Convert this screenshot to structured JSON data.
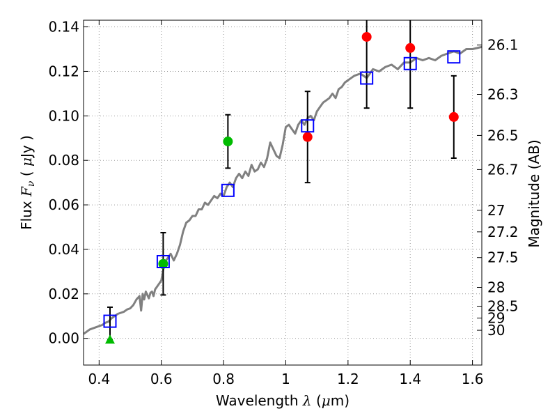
{
  "chart_data": {
    "type": "scatter",
    "title": "",
    "xlabel": {
      "prefix": "Wavelength  ",
      "symbol": "λ",
      "suffix": " (",
      "unit_symbol": "μ",
      "unit": "m)"
    },
    "ylabel": {
      "prefix": "Flux  ",
      "symbol": "F",
      "subscript": "ν",
      "suffix": "  (  ",
      "unit_symbol": "μ",
      "unit": "Jy  )"
    },
    "y2label": "Magnitude (AB)",
    "xlim": [
      0.35,
      1.63
    ],
    "ylim": [
      -0.012,
      0.143
    ],
    "x_ticks": [
      {
        "value": 0.4,
        "label": "0.4"
      },
      {
        "value": 0.6,
        "label": "0.6"
      },
      {
        "value": 0.8,
        "label": "0.8"
      },
      {
        "value": 1.0,
        "label": "1"
      },
      {
        "value": 1.2,
        "label": "1.2"
      },
      {
        "value": 1.4,
        "label": "1.4"
      },
      {
        "value": 1.6,
        "label": "1.6"
      }
    ],
    "y_ticks": [
      {
        "value": 0.0,
        "label": "0.00"
      },
      {
        "value": 0.02,
        "label": "0.02"
      },
      {
        "value": 0.04,
        "label": "0.04"
      },
      {
        "value": 0.06,
        "label": "0.06"
      },
      {
        "value": 0.08,
        "label": "0.08"
      },
      {
        "value": 0.1,
        "label": "0.10"
      },
      {
        "value": 0.12,
        "label": "0.12"
      },
      {
        "value": 0.14,
        "label": "0.14"
      }
    ],
    "y2_ticks": [
      {
        "label": "26.1",
        "mag": 26.1
      },
      {
        "label": "26.3",
        "mag": 26.3
      },
      {
        "label": "26.5",
        "mag": 26.5
      },
      {
        "label": "26.7",
        "mag": 26.7
      },
      {
        "label": "27",
        "mag": 27.0
      },
      {
        "label": "27.2",
        "mag": 27.2
      },
      {
        "label": "27.5",
        "mag": 27.5
      },
      {
        "label": "28",
        "mag": 28.0
      },
      {
        "label": "28.5",
        "mag": 28.5
      },
      {
        "label": "29",
        "mag": 29.0
      },
      {
        "label": "30",
        "mag": 30.0
      }
    ],
    "grid": true,
    "colors": {
      "model": "#808080",
      "model_points": "#0000ff",
      "red": "#ff0000",
      "green": "#00bb00",
      "errorbar": "#000000",
      "grid": "#999999"
    },
    "series": [
      {
        "name": "model-spectrum",
        "kind": "line",
        "x": [
          0.35,
          0.36,
          0.37,
          0.38,
          0.39,
          0.4,
          0.41,
          0.42,
          0.43,
          0.44,
          0.45,
          0.46,
          0.47,
          0.48,
          0.49,
          0.5,
          0.51,
          0.52,
          0.53,
          0.535,
          0.54,
          0.545,
          0.55,
          0.56,
          0.565,
          0.57,
          0.575,
          0.58,
          0.59,
          0.6,
          0.61,
          0.62,
          0.63,
          0.64,
          0.65,
          0.66,
          0.67,
          0.68,
          0.69,
          0.7,
          0.71,
          0.72,
          0.73,
          0.74,
          0.75,
          0.76,
          0.77,
          0.78,
          0.79,
          0.8,
          0.81,
          0.82,
          0.83,
          0.84,
          0.85,
          0.86,
          0.87,
          0.88,
          0.89,
          0.9,
          0.91,
          0.92,
          0.93,
          0.94,
          0.95,
          0.96,
          0.97,
          0.98,
          0.99,
          1.0,
          1.01,
          1.02,
          1.03,
          1.04,
          1.05,
          1.06,
          1.07,
          1.08,
          1.09,
          1.1,
          1.11,
          1.12,
          1.13,
          1.14,
          1.15,
          1.16,
          1.17,
          1.18,
          1.19,
          1.2,
          1.22,
          1.24,
          1.26,
          1.28,
          1.3,
          1.32,
          1.34,
          1.36,
          1.38,
          1.4,
          1.42,
          1.44,
          1.46,
          1.48,
          1.5,
          1.52,
          1.54,
          1.56,
          1.58,
          1.6,
          1.63
        ],
        "y": [
          0.002,
          0.003,
          0.004,
          0.0045,
          0.005,
          0.0055,
          0.006,
          0.007,
          0.0075,
          0.009,
          0.01,
          0.011,
          0.0115,
          0.012,
          0.013,
          0.0135,
          0.015,
          0.0175,
          0.019,
          0.0125,
          0.02,
          0.0175,
          0.021,
          0.018,
          0.0205,
          0.021,
          0.019,
          0.022,
          0.024,
          0.026,
          0.034,
          0.036,
          0.038,
          0.035,
          0.038,
          0.042,
          0.048,
          0.052,
          0.053,
          0.055,
          0.055,
          0.058,
          0.058,
          0.061,
          0.06,
          0.062,
          0.064,
          0.063,
          0.065,
          0.064,
          0.068,
          0.07,
          0.068,
          0.072,
          0.074,
          0.072,
          0.075,
          0.073,
          0.078,
          0.075,
          0.076,
          0.079,
          0.077,
          0.081,
          0.088,
          0.085,
          0.082,
          0.081,
          0.087,
          0.095,
          0.096,
          0.094,
          0.092,
          0.096,
          0.098,
          0.096,
          0.099,
          0.1,
          0.098,
          0.102,
          0.104,
          0.106,
          0.107,
          0.108,
          0.11,
          0.108,
          0.112,
          0.113,
          0.115,
          0.116,
          0.118,
          0.119,
          0.117,
          0.121,
          0.12,
          0.122,
          0.123,
          0.121,
          0.124,
          0.124,
          0.126,
          0.125,
          0.126,
          0.125,
          0.127,
          0.128,
          0.129,
          0.128,
          0.13,
          0.13,
          0.131
        ]
      },
      {
        "name": "model-photometry",
        "kind": "open-square",
        "x": [
          0.435,
          0.606,
          0.814,
          1.07,
          1.26,
          1.4,
          1.54
        ],
        "y": [
          0.0077,
          0.0345,
          0.0665,
          0.0955,
          0.117,
          0.1235,
          0.1265
        ]
      },
      {
        "name": "detections-red",
        "kind": "filled-circle",
        "x": [
          1.07,
          1.26,
          1.4,
          1.54
        ],
        "y": [
          0.0905,
          0.1355,
          0.1305,
          0.0995
        ],
        "yerr": [
          0.0205,
          0.032,
          0.027,
          0.0185
        ]
      },
      {
        "name": "detections-green",
        "kind": "filled-circle",
        "x": [
          0.606,
          0.814
        ],
        "y": [
          0.0335,
          0.0885
        ],
        "yerr": [
          0.014,
          0.012
        ]
      },
      {
        "name": "upper-limit-green",
        "kind": "filled-triangle",
        "x": [
          0.435
        ],
        "y": [
          -0.0005
        ],
        "yerr_up": [
          0.0145
        ]
      }
    ]
  }
}
